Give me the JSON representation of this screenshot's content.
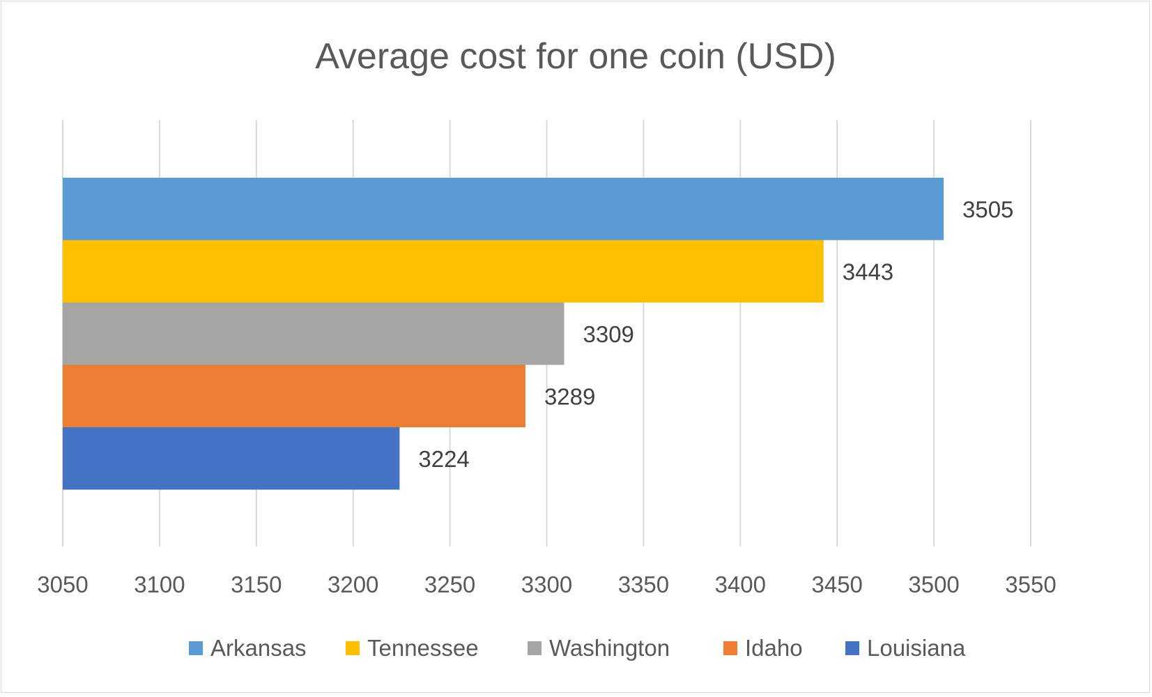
{
  "chart_data": {
    "type": "bar",
    "orientation": "horizontal",
    "title": "Average cost for one coin (USD)",
    "xlabel": "",
    "ylabel": "",
    "xlim": [
      3050,
      3550
    ],
    "x_ticks": [
      3050,
      3100,
      3150,
      3200,
      3250,
      3300,
      3350,
      3400,
      3450,
      3500,
      3550
    ],
    "grid": true,
    "legend_position": "bottom",
    "series": [
      {
        "name": "Arkansas",
        "value": 3505,
        "label": "3505",
        "color": "#5b9bd5"
      },
      {
        "name": "Tennessee",
        "value": 3443,
        "label": "3443",
        "color": "#ffc000"
      },
      {
        "name": "Washington",
        "value": 3309,
        "label": "3309",
        "color": "#a5a5a5"
      },
      {
        "name": "Idaho",
        "value": 3289,
        "label": "3289",
        "color": "#ed7d31"
      },
      {
        "name": "Louisiana",
        "value": 3224,
        "label": "3224",
        "color": "#4472c4"
      }
    ]
  }
}
